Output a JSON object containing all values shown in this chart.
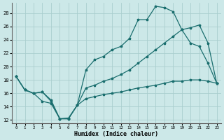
{
  "xlabel": "Humidex (Indice chaleur)",
  "bg_color": "#cce8e8",
  "grid_color": "#aacece",
  "line_color": "#1a6e6e",
  "xlim": [
    -0.5,
    23.5
  ],
  "ylim": [
    11.5,
    29.5
  ],
  "xticks": [
    0,
    1,
    2,
    3,
    4,
    5,
    6,
    7,
    8,
    9,
    10,
    11,
    12,
    13,
    14,
    15,
    16,
    17,
    18,
    19,
    20,
    21,
    22,
    23
  ],
  "yticks": [
    12,
    14,
    16,
    18,
    20,
    22,
    24,
    26,
    28
  ],
  "line1_x": [
    0,
    1,
    2,
    3,
    4,
    5,
    6,
    7,
    8,
    9,
    10,
    11,
    12,
    13,
    14,
    15,
    16,
    17,
    18,
    19,
    20,
    21,
    22,
    23
  ],
  "line1_y": [
    18.5,
    16.5,
    16.0,
    16.2,
    15.0,
    12.2,
    12.2,
    14.2,
    19.5,
    21.0,
    21.5,
    22.5,
    23.0,
    24.2,
    27.0,
    27.0,
    29.0,
    28.8,
    28.2,
    25.5,
    23.5,
    23.0,
    20.5,
    17.5
  ],
  "line2_x": [
    0,
    1,
    2,
    3,
    4,
    5,
    6,
    7,
    8,
    9,
    10,
    11,
    12,
    13,
    14,
    15,
    16,
    17,
    18,
    19,
    20,
    21,
    22,
    23
  ],
  "line2_y": [
    18.5,
    16.5,
    16.0,
    16.2,
    14.8,
    12.2,
    12.2,
    14.2,
    16.8,
    17.2,
    17.8,
    18.2,
    18.8,
    19.5,
    20.5,
    21.5,
    22.5,
    23.5,
    24.5,
    25.5,
    25.8,
    26.2,
    23.5,
    17.5
  ],
  "line3_x": [
    0,
    1,
    2,
    3,
    4,
    5,
    6,
    7,
    8,
    9,
    10,
    11,
    12,
    13,
    14,
    15,
    16,
    17,
    18,
    19,
    20,
    21,
    22,
    23
  ],
  "line3_y": [
    18.5,
    16.5,
    16.0,
    14.8,
    14.5,
    12.2,
    12.3,
    14.2,
    15.2,
    15.5,
    15.8,
    16.0,
    16.2,
    16.5,
    16.8,
    17.0,
    17.2,
    17.5,
    17.8,
    17.8,
    18.0,
    18.0,
    17.8,
    17.5
  ]
}
